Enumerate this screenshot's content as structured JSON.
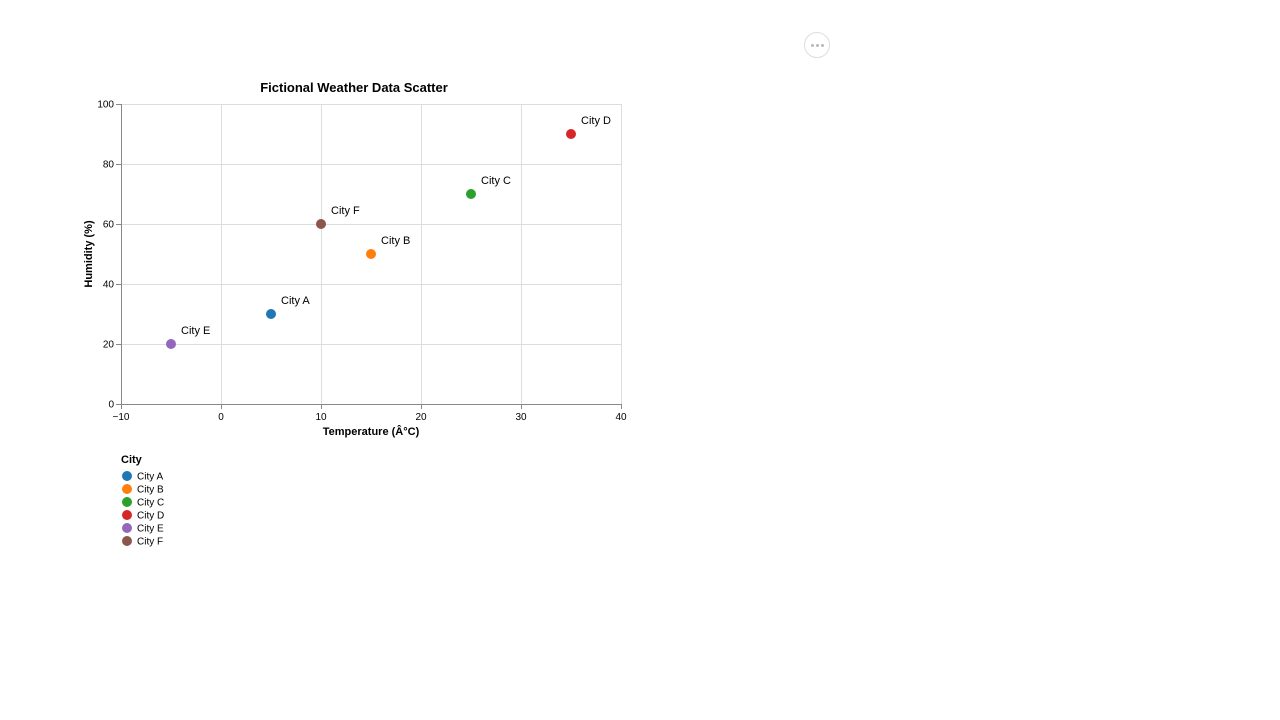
{
  "menu": {
    "icon": "ellipsis-icon"
  },
  "chart_data": {
    "type": "scatter",
    "title": "Fictional Weather Data Scatter",
    "xlabel": "Temperature (Â°C)",
    "ylabel": "Humidity (%)",
    "xlim": [
      -10,
      40
    ],
    "ylim": [
      0,
      100
    ],
    "x_ticks": [
      "−10",
      "0",
      "10",
      "20",
      "30",
      "40"
    ],
    "x_tick_values": [
      -10,
      0,
      10,
      20,
      30,
      40
    ],
    "y_ticks": [
      "0",
      "20",
      "40",
      "60",
      "80",
      "100"
    ],
    "y_tick_values": [
      0,
      20,
      40,
      60,
      80,
      100
    ],
    "grid": true,
    "legend": {
      "title": "City",
      "placement": "bottom-left"
    },
    "series": [
      {
        "name": "City A",
        "x": 5,
        "y": 30,
        "color": "#1f77b4"
      },
      {
        "name": "City B",
        "x": 15,
        "y": 50,
        "color": "#ff7f0e"
      },
      {
        "name": "City C",
        "x": 25,
        "y": 70,
        "color": "#2ca02c"
      },
      {
        "name": "City D",
        "x": 35,
        "y": 90,
        "color": "#d62728"
      },
      {
        "name": "City E",
        "x": -5,
        "y": 20,
        "color": "#9467bd"
      },
      {
        "name": "City F",
        "x": 10,
        "y": 60,
        "color": "#8c564b"
      }
    ]
  }
}
